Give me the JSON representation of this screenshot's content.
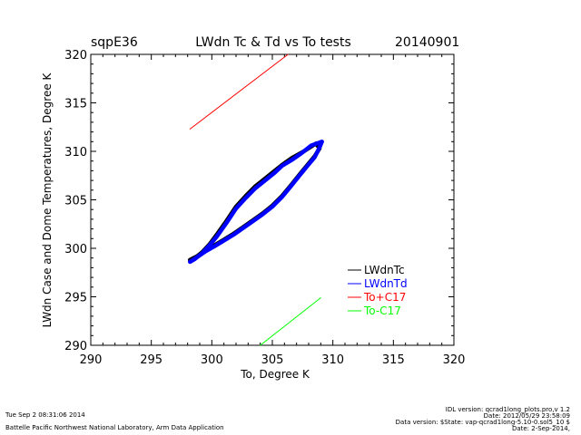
{
  "header": {
    "site": "sqpE36",
    "title": "LWdn Tc & Td vs To tests",
    "date": "20140901"
  },
  "footer": {
    "left_line1": "Tue Sep  2 08:31:06 2014",
    "left_line2": "Battelle Pacific Northwest National Laboratory, Arm Data Application",
    "right_line1": "IDL version: qcrad1long_plots.pro,v 1.2",
    "right_line2": "Date: 2012/05/29 23:58:09",
    "right_line3": "Data version: $State: vap-qcrad1long-5.10-0.sol5_10 $",
    "right_line4": "Date: 2-Sep-2014,"
  },
  "chart_data": {
    "type": "line",
    "xlabel": "To, Degree K",
    "ylabel": "LWdn Case and Dome Temperatures, Degree K",
    "xlim": [
      290,
      320
    ],
    "ylim": [
      290,
      320
    ],
    "xticks": [
      290,
      295,
      300,
      305,
      310,
      315,
      320
    ],
    "yticks": [
      290,
      295,
      300,
      305,
      310,
      315,
      320
    ],
    "legend_position": "bottom-right",
    "series": [
      {
        "name": "LWdnTc",
        "color": "#000000",
        "style": "scatter-band",
        "points": [
          [
            298.2,
            298.8
          ],
          [
            298.8,
            299.2
          ],
          [
            299.5,
            299.8
          ],
          [
            300.2,
            300.3
          ],
          [
            301.0,
            300.9
          ],
          [
            301.8,
            301.5
          ],
          [
            302.6,
            302.2
          ],
          [
            303.4,
            302.9
          ],
          [
            304.2,
            303.6
          ],
          [
            305.0,
            304.4
          ],
          [
            305.8,
            305.4
          ],
          [
            306.6,
            306.6
          ],
          [
            307.3,
            307.7
          ],
          [
            307.9,
            308.6
          ],
          [
            308.5,
            309.5
          ],
          [
            308.9,
            310.3
          ],
          [
            308.6,
            310.8
          ],
          [
            307.6,
            310.0
          ],
          [
            306.6,
            309.3
          ],
          [
            305.8,
            308.6
          ],
          [
            305.2,
            308.0
          ],
          [
            304.4,
            307.2
          ],
          [
            303.6,
            306.4
          ],
          [
            302.8,
            305.4
          ],
          [
            302.0,
            304.3
          ],
          [
            301.2,
            302.8
          ],
          [
            300.4,
            301.4
          ],
          [
            299.8,
            300.4
          ],
          [
            299.2,
            299.6
          ],
          [
            298.6,
            299.0
          ]
        ]
      },
      {
        "name": "LWdnTd",
        "color": "#0000ff",
        "style": "scatter-band",
        "points": [
          [
            298.2,
            298.6
          ],
          [
            298.8,
            299.1
          ],
          [
            299.5,
            299.7
          ],
          [
            300.2,
            300.2
          ],
          [
            301.0,
            300.8
          ],
          [
            301.8,
            301.4
          ],
          [
            302.6,
            302.1
          ],
          [
            303.4,
            302.8
          ],
          [
            304.2,
            303.5
          ],
          [
            305.0,
            304.3
          ],
          [
            305.8,
            305.3
          ],
          [
            306.6,
            306.5
          ],
          [
            307.3,
            307.6
          ],
          [
            307.9,
            308.5
          ],
          [
            308.5,
            309.4
          ],
          [
            308.9,
            310.4
          ],
          [
            309.1,
            311.0
          ],
          [
            308.2,
            310.6
          ],
          [
            307.4,
            309.8
          ],
          [
            306.6,
            309.1
          ],
          [
            305.8,
            308.5
          ],
          [
            305.2,
            307.8
          ],
          [
            304.4,
            307.0
          ],
          [
            303.6,
            306.2
          ],
          [
            302.8,
            305.2
          ],
          [
            302.0,
            304.1
          ],
          [
            301.2,
            302.6
          ],
          [
            300.4,
            301.2
          ],
          [
            299.8,
            300.3
          ],
          [
            299.2,
            299.5
          ],
          [
            298.6,
            298.9
          ]
        ]
      },
      {
        "name": "To+C17",
        "color": "#ff0000",
        "style": "line",
        "points": [
          [
            298.2,
            312.3
          ],
          [
            306.3,
            320.0
          ]
        ]
      },
      {
        "name": "To-C17",
        "color": "#00ff00",
        "style": "line",
        "points": [
          [
            304.0,
            290.0
          ],
          [
            309.0,
            294.9
          ]
        ]
      }
    ]
  }
}
